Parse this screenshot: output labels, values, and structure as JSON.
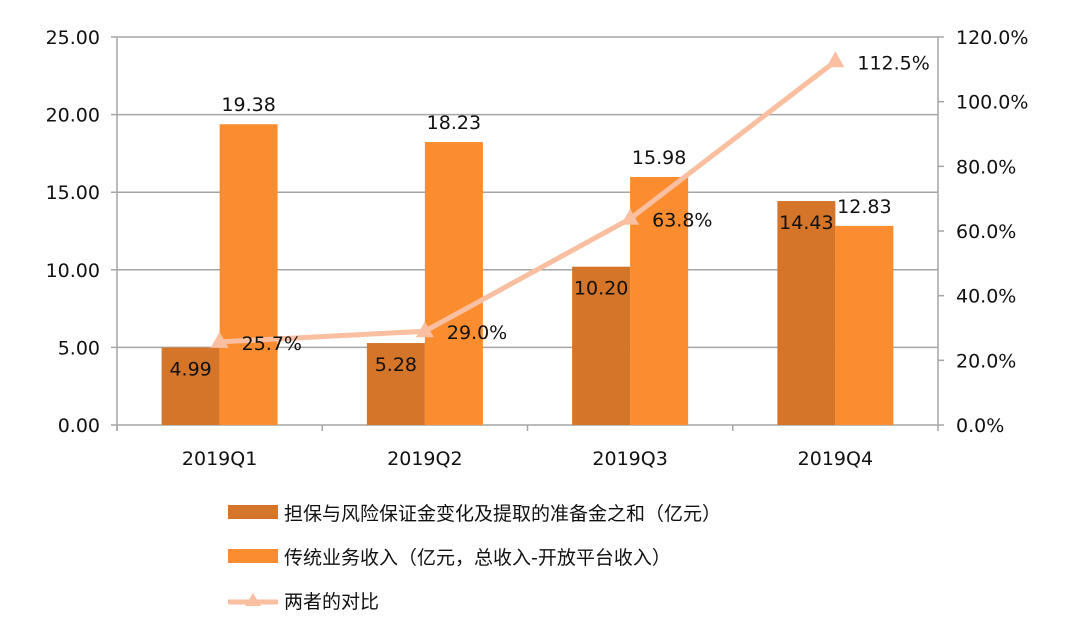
{
  "chart_data": {
    "type": "bar+line",
    "categories": [
      "2019Q1",
      "2019Q2",
      "2019Q3",
      "2019Q4"
    ],
    "series": [
      {
        "name": "担保与风险保证金变化及提取的准备金之和（亿元）",
        "type": "bar",
        "axis": "left",
        "color": "#d4752a",
        "values": [
          4.99,
          5.28,
          10.2,
          14.43
        ],
        "labels": [
          "4.99",
          "5.28",
          "10.20",
          "14.43"
        ]
      },
      {
        "name": "传统业务收入（亿元，总收入-开放平台收入）",
        "type": "bar",
        "axis": "left",
        "color": "#fb8c2f",
        "values": [
          19.38,
          18.23,
          15.98,
          12.83
        ],
        "labels": [
          "19.38",
          "18.23",
          "15.98",
          "12.83"
        ]
      },
      {
        "name": "两者的对比",
        "type": "line",
        "axis": "right",
        "marker": "triangle",
        "color": "#f9bfa0",
        "values": [
          25.7,
          29.0,
          63.8,
          112.5
        ],
        "labels": [
          "25.7%",
          "29.0%",
          "63.8%",
          "112.5%"
        ]
      }
    ],
    "left_axis": {
      "ylim": [
        0,
        25
      ],
      "ticks": [
        "0.00",
        "5.00",
        "10.00",
        "15.00",
        "20.00",
        "25.00"
      ]
    },
    "right_axis": {
      "ylim": [
        0,
        120
      ],
      "ticks": [
        "0.0%",
        "20.0%",
        "40.0%",
        "60.0%",
        "80.0%",
        "100.0%",
        "120.0%"
      ]
    },
    "grid": true,
    "legend_position": "bottom"
  }
}
